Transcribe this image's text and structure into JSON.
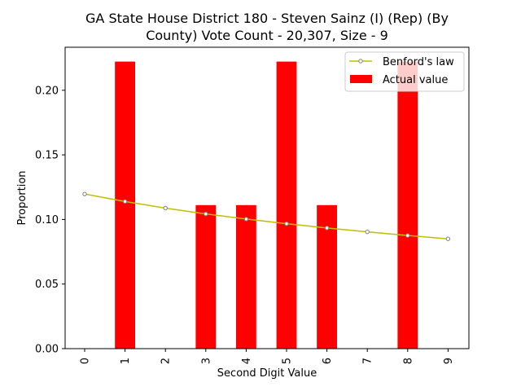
{
  "chart_data": {
    "type": "bar",
    "title_line1": "GA State House District 180 - Steven Sainz (I) (Rep) (By",
    "title_line2": "County) Vote Count - 20,307, Size - 9",
    "xlabel": "Second Digit Value",
    "ylabel": "Proportion",
    "categories": [
      "0",
      "1",
      "2",
      "3",
      "4",
      "5",
      "6",
      "7",
      "8",
      "9"
    ],
    "ylim": [
      0,
      0.2333
    ],
    "yticks": [
      "0.00",
      "0.05",
      "0.10",
      "0.15",
      "0.20"
    ],
    "series": [
      {
        "name": "Actual value",
        "kind": "bar",
        "color": "#ff0000",
        "values": [
          0.0,
          0.2222,
          0.0,
          0.1111,
          0.1111,
          0.2222,
          0.1111,
          0.0,
          0.2222,
          0.0
        ]
      },
      {
        "name": "Benford's law",
        "kind": "line",
        "color": "#bfbf00",
        "marker_color": "#808080",
        "values": [
          0.1197,
          0.1139,
          0.1088,
          0.1043,
          0.1003,
          0.0967,
          0.0934,
          0.0904,
          0.0876,
          0.085
        ]
      }
    ],
    "legend_position": "top-right",
    "grid": false
  }
}
